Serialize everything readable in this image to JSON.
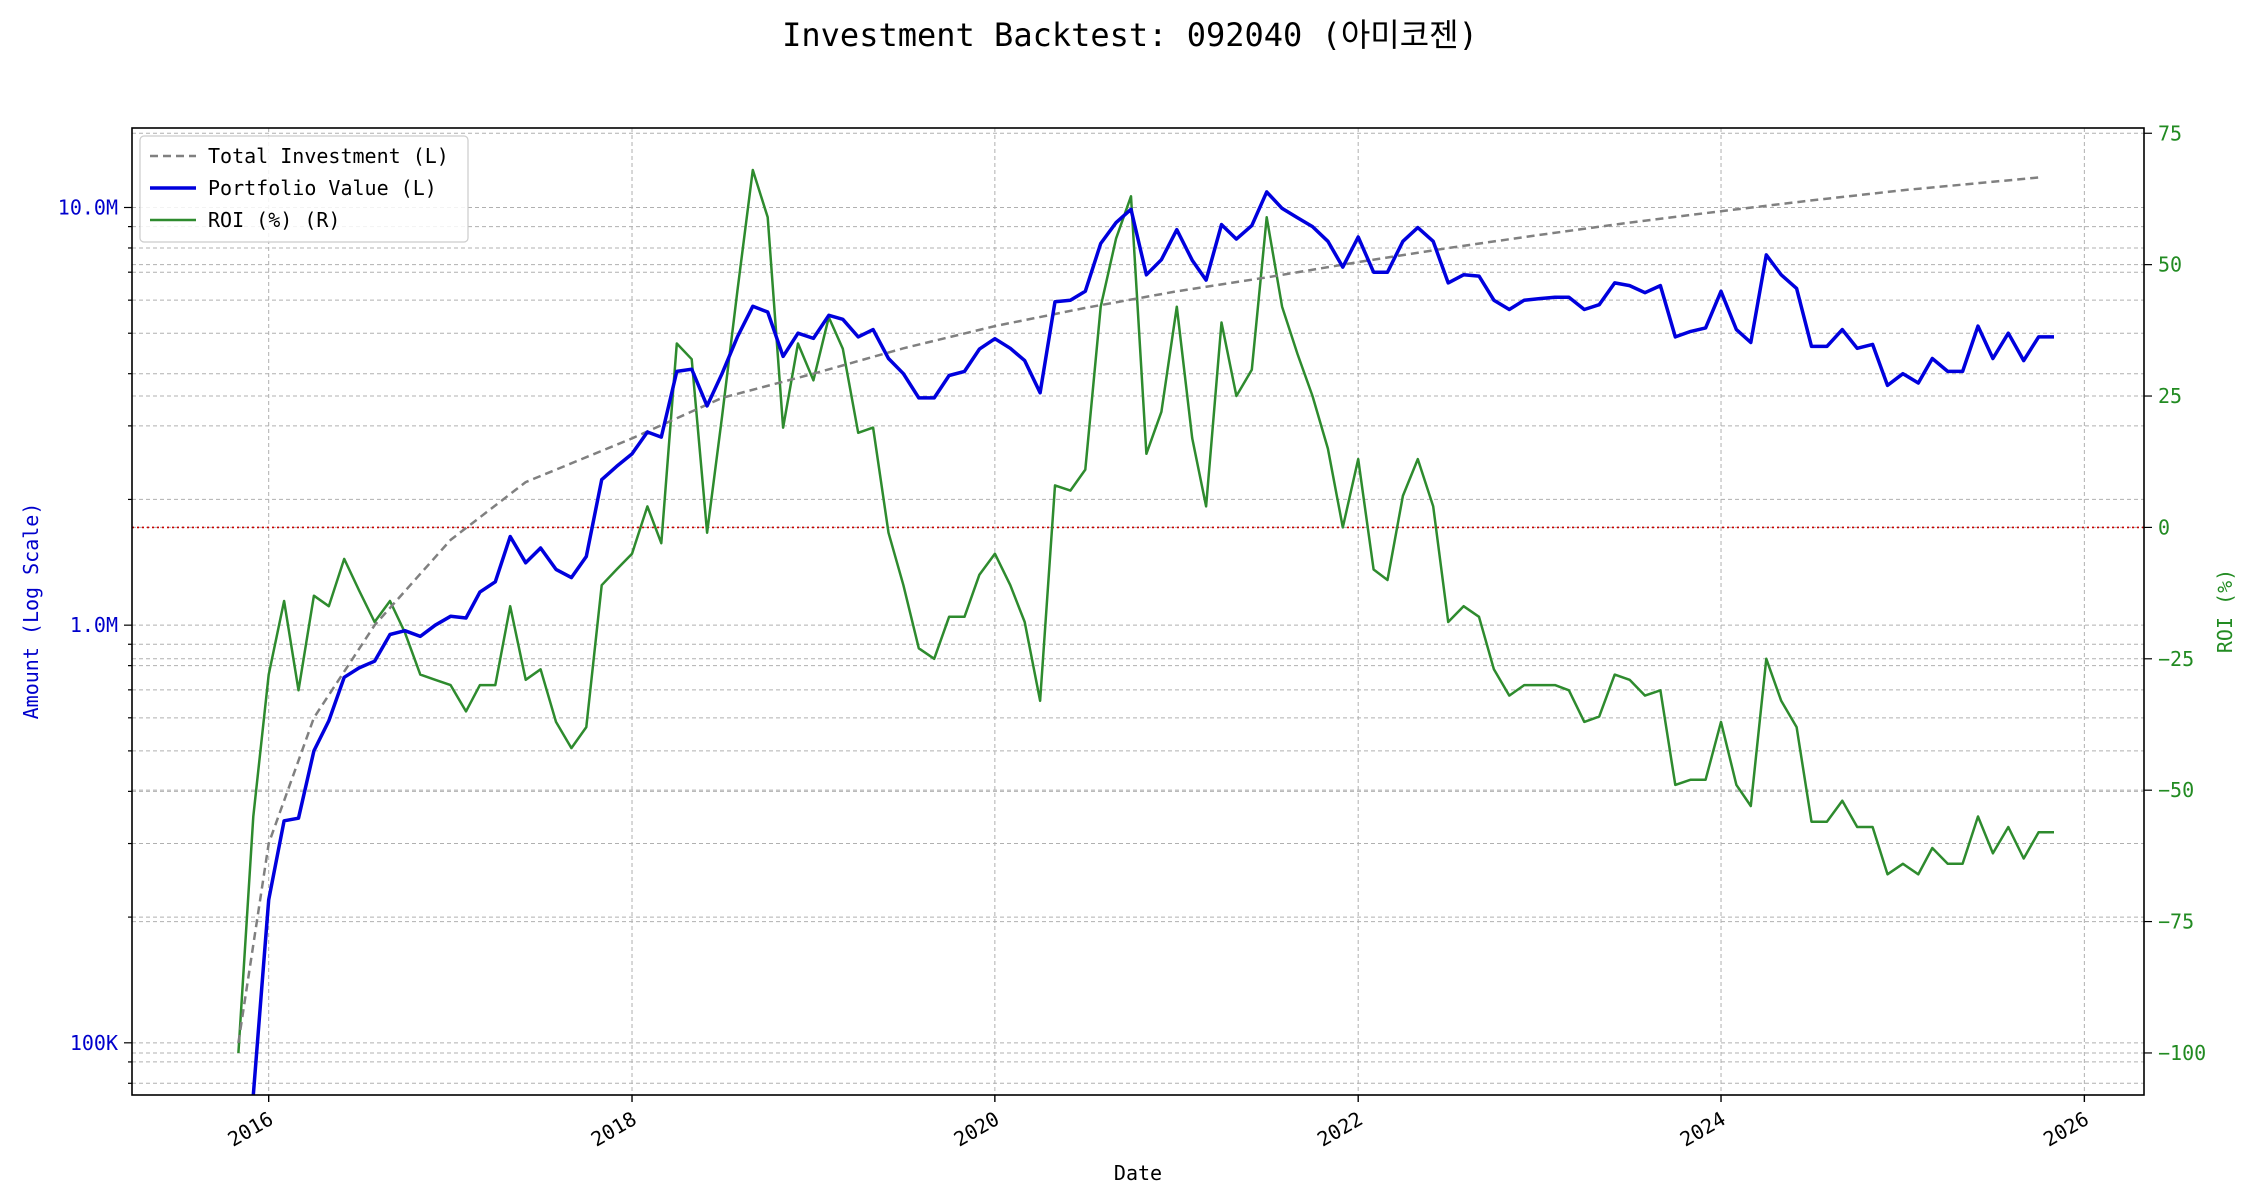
{
  "chart_data": {
    "type": "line",
    "title": "Investment Backtest: 092040 (아미코젠)",
    "xlabel": "Date",
    "ylabel_left": "Amount (Log Scale)",
    "ylabel_right": "ROI (%)",
    "x_range": [
      "2015-04-01",
      "2026-05-01"
    ],
    "x_ticks": [
      "2016",
      "2018",
      "2020",
      "2022",
      "2024",
      "2026"
    ],
    "y_left": {
      "scale": "log",
      "range": [
        75000,
        15500000
      ],
      "ticks": [
        100000,
        1000000,
        10000000
      ],
      "tick_labels": [
        "100K",
        "1.0M",
        "10.0M"
      ]
    },
    "y_right": {
      "range": [
        -108,
        76
      ],
      "ticks": [
        -100,
        -75,
        -50,
        -25,
        0,
        25,
        50,
        75
      ],
      "tick_labels": [
        "−100",
        "−75",
        "−50",
        "−25",
        "0",
        "25",
        "50",
        "75"
      ]
    },
    "grid": true,
    "legend": "top-left",
    "reference_line": {
      "axis": "right",
      "value": 0,
      "style": "dotted",
      "color": "#cc0000"
    },
    "colors": {
      "total_investment": "#808080",
      "portfolio_value": "#0000dd",
      "roi": "#2e8b2e",
      "left_axis": "#0000cc",
      "right_axis": "#228b22"
    },
    "series": [
      {
        "name": "Total Investment (L)",
        "axis": "left",
        "style": "dashed",
        "x": [
          "2015-11-01",
          "2016-01-01",
          "2016-04-01",
          "2016-08-01",
          "2017-01-01",
          "2017-06-01",
          "2018-01-01",
          "2018-07-01",
          "2019-01-01",
          "2019-07-01",
          "2020-01-01",
          "2020-07-01",
          "2021-01-01",
          "2021-07-01",
          "2022-01-01",
          "2022-07-01",
          "2023-01-01",
          "2023-07-01",
          "2024-01-01",
          "2024-07-01",
          "2025-01-01",
          "2025-10-01"
        ],
        "values": [
          100000,
          300000,
          600000,
          1000000,
          1600000,
          2200000,
          2800000,
          3500000,
          4000000,
          4600000,
          5200000,
          5750000,
          6300000,
          6800000,
          7400000,
          8000000,
          8600000,
          9200000,
          9800000,
          10400000,
          11000000,
          11800000
        ]
      },
      {
        "name": "Portfolio Value (L)",
        "axis": "left",
        "style": "solid",
        "x": [
          "2015-12-01",
          "2016-01-01",
          "2016-02-01",
          "2016-03-01",
          "2016-04-01",
          "2016-05-01",
          "2016-06-01",
          "2016-07-01",
          "2016-08-01",
          "2016-09-01",
          "2016-10-01",
          "2016-11-01",
          "2016-12-01",
          "2017-01-01",
          "2017-02-01",
          "2017-03-01",
          "2017-04-01",
          "2017-05-01",
          "2017-06-01",
          "2017-07-01",
          "2017-08-01",
          "2017-09-01",
          "2017-10-01",
          "2017-11-01",
          "2017-12-01",
          "2018-01-01",
          "2018-02-01",
          "2018-03-01",
          "2018-04-01",
          "2018-05-01",
          "2018-06-01",
          "2018-07-01",
          "2018-08-01",
          "2018-09-01",
          "2018-10-01",
          "2018-11-01",
          "2018-12-01",
          "2019-01-01",
          "2019-02-01",
          "2019-03-01",
          "2019-04-01",
          "2019-05-01",
          "2019-06-01",
          "2019-07-01",
          "2019-08-01",
          "2019-09-01",
          "2019-10-01",
          "2019-11-01",
          "2019-12-01",
          "2020-01-01",
          "2020-02-01",
          "2020-03-01",
          "2020-04-01",
          "2020-05-01",
          "2020-06-01",
          "2020-07-01",
          "2020-08-01",
          "2020-09-01",
          "2020-10-01",
          "2020-11-01",
          "2020-12-01",
          "2021-01-01",
          "2021-02-01",
          "2021-03-01",
          "2021-04-01",
          "2021-05-01",
          "2021-06-01",
          "2021-07-01",
          "2021-08-01",
          "2021-09-01",
          "2021-10-01",
          "2021-11-01",
          "2021-12-01",
          "2022-01-01",
          "2022-02-01",
          "2022-03-01",
          "2022-04-01",
          "2022-05-01",
          "2022-06-01",
          "2022-07-01",
          "2022-08-01",
          "2022-09-01",
          "2022-10-01",
          "2022-11-01",
          "2022-12-01",
          "2023-01-01",
          "2023-02-01",
          "2023-03-01",
          "2023-04-01",
          "2023-05-01",
          "2023-06-01",
          "2023-07-01",
          "2023-08-01",
          "2023-09-01",
          "2023-10-01",
          "2023-11-01",
          "2023-12-01",
          "2024-01-01",
          "2024-02-01",
          "2024-03-01",
          "2024-04-01",
          "2024-05-01",
          "2024-06-01",
          "2024-07-01",
          "2024-08-01",
          "2024-09-01",
          "2024-10-01",
          "2024-11-01",
          "2024-12-01",
          "2025-01-01",
          "2025-02-01",
          "2025-03-01",
          "2025-04-01",
          "2025-05-01",
          "2025-06-01",
          "2025-07-01",
          "2025-08-01",
          "2025-09-01",
          "2025-10-01",
          "2025-11-01"
        ],
        "values": [
          75000,
          220000,
          340000,
          345000,
          500000,
          590000,
          750000,
          790000,
          820000,
          950000,
          970000,
          940000,
          1000000,
          1050000,
          1040000,
          1200000,
          1270000,
          1630000,
          1410000,
          1530000,
          1360000,
          1300000,
          1460000,
          2230000,
          2400000,
          2570000,
          2900000,
          2820000,
          4050000,
          4100000,
          3350000,
          4000000,
          4900000,
          5800000,
          5620000,
          4400000,
          5000000,
          4860000,
          5520000,
          5400000,
          4900000,
          5100000,
          4350000,
          4000000,
          3500000,
          3500000,
          3960000,
          4050000,
          4580000,
          4850000,
          4600000,
          4300000,
          3600000,
          5950000,
          6000000,
          6300000,
          8200000,
          9200000,
          9900000,
          6900000,
          7500000,
          8850000,
          7480000,
          6700000,
          9100000,
          8400000,
          9050000,
          10900000,
          9950000,
          9450000,
          9000000,
          8300000,
          7200000,
          8500000,
          7000000,
          7000000,
          8300000,
          8950000,
          8300000,
          6600000,
          6900000,
          6850000,
          6000000,
          5700000,
          6000000,
          6050000,
          6100000,
          6100000,
          5700000,
          5850000,
          6600000,
          6500000,
          6250000,
          6500000,
          4900000,
          5050000,
          5150000,
          6300000,
          5100000,
          4750000,
          7700000,
          6900000,
          6400000,
          4650000,
          4650000,
          5100000,
          4600000,
          4700000,
          3750000,
          4000000,
          3800000,
          4350000,
          4050000,
          4050000,
          5200000,
          4350000,
          5000000,
          4300000,
          4900000,
          4900000
        ]
      },
      {
        "name": "ROI (%) (R)",
        "axis": "right",
        "style": "solid",
        "x": [
          "2015-11-01",
          "2015-12-01",
          "2016-01-01",
          "2016-02-01",
          "2016-03-01",
          "2016-04-01",
          "2016-05-01",
          "2016-06-01",
          "2016-07-01",
          "2016-08-01",
          "2016-09-01",
          "2016-10-01",
          "2016-11-01",
          "2016-12-01",
          "2017-01-01",
          "2017-02-01",
          "2017-03-01",
          "2017-04-01",
          "2017-05-01",
          "2017-06-01",
          "2017-07-01",
          "2017-08-01",
          "2017-09-01",
          "2017-10-01",
          "2017-11-01",
          "2017-12-01",
          "2018-01-01",
          "2018-02-01",
          "2018-03-01",
          "2018-04-01",
          "2018-05-01",
          "2018-06-01",
          "2018-07-01",
          "2018-08-01",
          "2018-09-01",
          "2018-10-01",
          "2018-11-01",
          "2018-12-01",
          "2019-01-01",
          "2019-02-01",
          "2019-03-01",
          "2019-04-01",
          "2019-05-01",
          "2019-06-01",
          "2019-07-01",
          "2019-08-01",
          "2019-09-01",
          "2019-10-01",
          "2019-11-01",
          "2019-12-01",
          "2020-01-01",
          "2020-02-01",
          "2020-03-01",
          "2020-04-01",
          "2020-05-01",
          "2020-06-01",
          "2020-07-01",
          "2020-08-01",
          "2020-09-01",
          "2020-10-01",
          "2020-11-01",
          "2020-12-01",
          "2021-01-01",
          "2021-02-01",
          "2021-03-01",
          "2021-04-01",
          "2021-05-01",
          "2021-06-01",
          "2021-07-01",
          "2021-08-01",
          "2021-09-01",
          "2021-10-01",
          "2021-11-01",
          "2021-12-01",
          "2022-01-01",
          "2022-02-01",
          "2022-03-01",
          "2022-04-01",
          "2022-05-01",
          "2022-06-01",
          "2022-07-01",
          "2022-08-01",
          "2022-09-01",
          "2022-10-01",
          "2022-11-01",
          "2022-12-01",
          "2023-01-01",
          "2023-02-01",
          "2023-03-01",
          "2023-04-01",
          "2023-05-01",
          "2023-06-01",
          "2023-07-01",
          "2023-08-01",
          "2023-09-01",
          "2023-10-01",
          "2023-11-01",
          "2023-12-01",
          "2024-01-01",
          "2024-02-01",
          "2024-03-01",
          "2024-04-01",
          "2024-05-01",
          "2024-06-01",
          "2024-07-01",
          "2024-08-01",
          "2024-09-01",
          "2024-10-01",
          "2024-11-01",
          "2024-12-01",
          "2025-01-01",
          "2025-02-01",
          "2025-03-01",
          "2025-04-01",
          "2025-05-01",
          "2025-06-01",
          "2025-07-01",
          "2025-08-01",
          "2025-09-01",
          "2025-10-01",
          "2025-11-01"
        ],
        "values": [
          -100,
          -55,
          -28,
          -14,
          -31,
          -13,
          -15,
          -6,
          -12,
          -18,
          -14,
          -20,
          -28,
          -29,
          -30,
          -35,
          -30,
          -30,
          -15,
          -29,
          -27,
          -37,
          -42,
          -38,
          -11,
          -8,
          -5,
          4,
          -3,
          35,
          32,
          -1,
          21,
          45,
          68,
          59,
          19,
          35,
          28,
          40,
          34,
          18,
          19,
          -1,
          -11,
          -23,
          -25,
          -17,
          -17,
          -9,
          -5,
          -11,
          -18,
          -33,
          8,
          7,
          11,
          42,
          55,
          63,
          14,
          22,
          42,
          17,
          4,
          39,
          25,
          30,
          59,
          42,
          33,
          25,
          15,
          0,
          13,
          -8,
          -10,
          6,
          13,
          4,
          -18,
          -15,
          -17,
          -27,
          -32,
          -30,
          -30,
          -30,
          -31,
          -37,
          -36,
          -28,
          -29,
          -32,
          -31,
          -49,
          -48,
          -48,
          -37,
          -49,
          -53,
          -25,
          -33,
          -38,
          -56,
          -56,
          -52,
          -57,
          -57,
          -66,
          -64,
          -66,
          -61,
          -64,
          -64,
          -55,
          -62,
          -57,
          -63,
          -58,
          -58
        ]
      }
    ]
  }
}
